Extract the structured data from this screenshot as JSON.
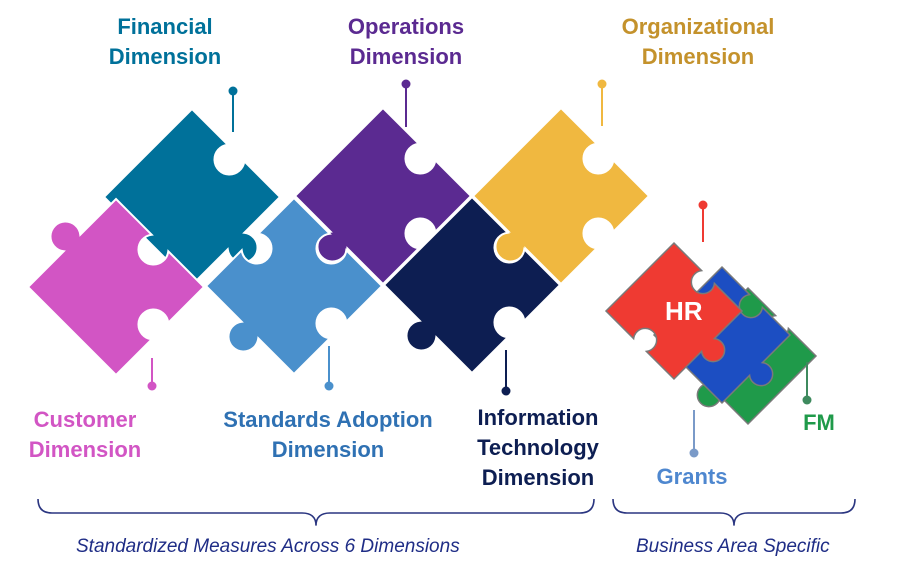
{
  "colors": {
    "financial": "#00719a",
    "operations": "#5b2a91",
    "organizational": "#f0b840",
    "organizational_text": "#c4922c",
    "customer": "#d255c4",
    "standards": "#4a90cc",
    "standards_text": "#2f71b3",
    "it": "#0d1e52",
    "hr": "#ef3a32",
    "grants": "#1c4ec2",
    "grants_text": "#4e87cf",
    "fm": "#1f9a4a",
    "bracket": "#2a3580"
  },
  "labels": {
    "financial": [
      "Financial",
      "Dimension"
    ],
    "operations": [
      "Operations",
      "Dimension"
    ],
    "organizational": [
      "Organizational",
      "Dimension"
    ],
    "customer": [
      "Customer",
      "Dimension"
    ],
    "standards": [
      "Standards Adoption",
      "Dimension"
    ],
    "it": [
      "Information",
      "Technology",
      "Dimension"
    ],
    "hr": "HR",
    "grants": "Grants",
    "fm": "FM"
  },
  "footer": {
    "left": "Standardized Measures Across 6 Dimensions",
    "right": "Business Area Specific"
  }
}
